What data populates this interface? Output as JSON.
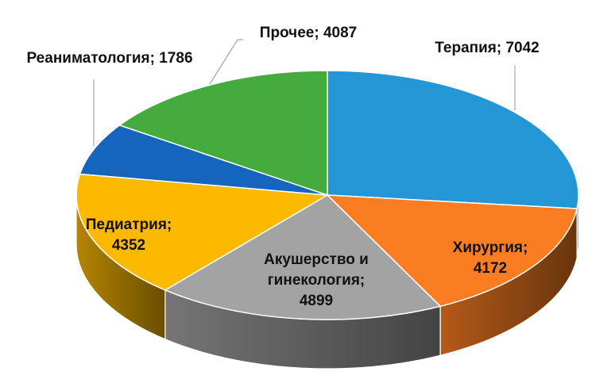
{
  "chart_data": {
    "type": "pie",
    "variant": "3d",
    "title": "",
    "slices": [
      {
        "name": "Терапия",
        "value": 7042,
        "label_lines": [
          "Терапия; 7042"
        ],
        "color": "#2496d6"
      },
      {
        "name": "Хирургия",
        "value": 4172,
        "label_lines": [
          "Хирургия;",
          "4172"
        ],
        "color": "#fb7d21"
      },
      {
        "name": "Акушерство и гинекология",
        "value": 4899,
        "label_lines": [
          "Акушерство и",
          "гинекология;",
          "4899"
        ],
        "color": "#a3a3a3"
      },
      {
        "name": "Педиатрия",
        "value": 4352,
        "label_lines": [
          "Педиатрия;",
          "4352"
        ],
        "color": "#fcb900"
      },
      {
        "name": "Реаниматология",
        "value": 1786,
        "label_lines": [
          "Реаниматология; 1786"
        ],
        "color": "#1565be"
      },
      {
        "name": "Прочее",
        "value": 4087,
        "label_lines": [
          "Прочее; 4087"
        ],
        "color": "#44ac3c"
      }
    ],
    "legend": "none"
  }
}
